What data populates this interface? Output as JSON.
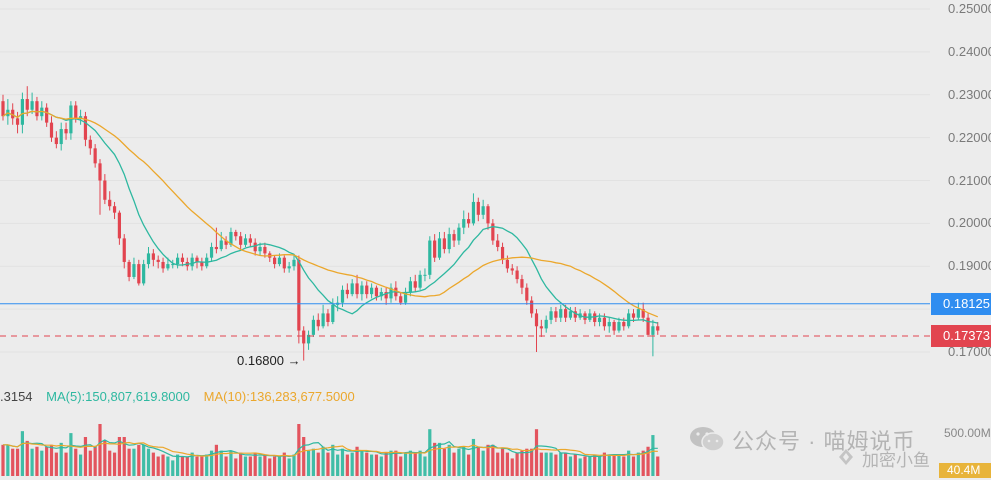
{
  "chart_data": {
    "type": "candlestick",
    "title": "",
    "xlabel": "",
    "ylabel": "",
    "ylim": [
      0.168,
      0.252
    ],
    "y_ticks": [
      "0.25000",
      "0.24000",
      "0.23000",
      "0.22000",
      "0.21000",
      "0.20000",
      "0.19000",
      "0.18000",
      "0.17000"
    ],
    "grid": true,
    "candles": [
      [
        0.2285,
        0.225,
        0.23,
        0.224
      ],
      [
        0.225,
        0.2265,
        0.229,
        0.223
      ],
      [
        0.2265,
        0.2245,
        0.228,
        0.223
      ],
      [
        0.2245,
        0.223,
        0.226,
        0.221
      ],
      [
        0.223,
        0.229,
        0.2305,
        0.221
      ],
      [
        0.229,
        0.2265,
        0.232,
        0.225
      ],
      [
        0.2265,
        0.2285,
        0.2305,
        0.2255
      ],
      [
        0.2285,
        0.225,
        0.2295,
        0.224
      ],
      [
        0.225,
        0.227,
        0.2285,
        0.224
      ],
      [
        0.227,
        0.2235,
        0.228,
        0.2225
      ],
      [
        0.2235,
        0.22,
        0.225,
        0.219
      ],
      [
        0.22,
        0.2185,
        0.2215,
        0.2175
      ],
      [
        0.2185,
        0.222,
        0.2235,
        0.217
      ],
      [
        0.222,
        0.221,
        0.2235,
        0.2195
      ],
      [
        0.221,
        0.2275,
        0.2285,
        0.2195
      ],
      [
        0.2275,
        0.2245,
        0.2285,
        0.2235
      ],
      [
        0.2245,
        0.225,
        0.2265,
        0.223
      ],
      [
        0.225,
        0.2195,
        0.226,
        0.218
      ],
      [
        0.2195,
        0.2175,
        0.2205,
        0.216
      ],
      [
        0.2175,
        0.214,
        0.2185,
        0.213
      ],
      [
        0.214,
        0.21,
        0.215,
        0.202
      ],
      [
        0.21,
        0.2055,
        0.2115,
        0.2045
      ],
      [
        0.2055,
        0.204,
        0.2075,
        0.203
      ],
      [
        0.204,
        0.2025,
        0.205,
        0.201
      ],
      [
        0.2025,
        0.1965,
        0.203,
        0.195
      ],
      [
        0.1965,
        0.191,
        0.1975,
        0.1895
      ],
      [
        0.191,
        0.1875,
        0.1915,
        0.1865
      ],
      [
        0.1875,
        0.1905,
        0.192,
        0.187
      ],
      [
        0.1905,
        0.186,
        0.1915,
        0.1855
      ],
      [
        0.186,
        0.1905,
        0.1915,
        0.1855
      ],
      [
        0.1905,
        0.193,
        0.1945,
        0.1895
      ],
      [
        0.193,
        0.1915,
        0.194,
        0.19
      ],
      [
        0.1915,
        0.191,
        0.1925,
        0.1895
      ],
      [
        0.191,
        0.1895,
        0.192,
        0.1885
      ],
      [
        0.1895,
        0.1905,
        0.192,
        0.189
      ],
      [
        0.1905,
        0.1905,
        0.1915,
        0.1895
      ],
      [
        0.1905,
        0.192,
        0.193,
        0.1895
      ],
      [
        0.192,
        0.191,
        0.193,
        0.19
      ],
      [
        0.191,
        0.19,
        0.192,
        0.189
      ],
      [
        0.19,
        0.192,
        0.193,
        0.189
      ],
      [
        0.192,
        0.191,
        0.1925,
        0.1895
      ],
      [
        0.191,
        0.19,
        0.192,
        0.189
      ],
      [
        0.19,
        0.192,
        0.193,
        0.1895
      ],
      [
        0.192,
        0.1945,
        0.1955,
        0.191
      ],
      [
        0.1945,
        0.194,
        0.199,
        0.193
      ],
      [
        0.194,
        0.196,
        0.198,
        0.1935
      ],
      [
        0.196,
        0.195,
        0.197,
        0.194
      ],
      [
        0.195,
        0.198,
        0.199,
        0.1945
      ],
      [
        0.198,
        0.197,
        0.1985,
        0.196
      ],
      [
        0.197,
        0.195,
        0.198,
        0.194
      ],
      [
        0.195,
        0.1965,
        0.1975,
        0.1945
      ],
      [
        0.1965,
        0.1955,
        0.1975,
        0.1945
      ],
      [
        0.1955,
        0.1935,
        0.1965,
        0.1925
      ],
      [
        0.1935,
        0.1945,
        0.1955,
        0.1925
      ],
      [
        0.1945,
        0.193,
        0.1955,
        0.192
      ],
      [
        0.193,
        0.192,
        0.1935,
        0.191
      ],
      [
        0.192,
        0.1905,
        0.1925,
        0.1895
      ],
      [
        0.1905,
        0.192,
        0.193,
        0.19
      ],
      [
        0.192,
        0.1895,
        0.1925,
        0.1885
      ],
      [
        0.1895,
        0.19,
        0.191,
        0.1885
      ],
      [
        0.19,
        0.1915,
        0.1925,
        0.189
      ],
      [
        0.1915,
        0.175,
        0.1925,
        0.172
      ],
      [
        0.175,
        0.172,
        0.176,
        0.168
      ],
      [
        0.172,
        0.174,
        0.175,
        0.1705
      ],
      [
        0.174,
        0.1775,
        0.1785,
        0.1735
      ],
      [
        0.1775,
        0.176,
        0.179,
        0.175
      ],
      [
        0.176,
        0.179,
        0.181,
        0.1755
      ],
      [
        0.179,
        0.177,
        0.18,
        0.176
      ],
      [
        0.177,
        0.181,
        0.1825,
        0.1765
      ],
      [
        0.181,
        0.1815,
        0.183,
        0.1795
      ],
      [
        0.1815,
        0.1845,
        0.1855,
        0.1805
      ],
      [
        0.1845,
        0.1835,
        0.186,
        0.1825
      ],
      [
        0.1835,
        0.186,
        0.187,
        0.183
      ],
      [
        0.186,
        0.1835,
        0.188,
        0.1825
      ],
      [
        0.1835,
        0.1855,
        0.1865,
        0.182
      ],
      [
        0.1855,
        0.1835,
        0.1865,
        0.1825
      ],
      [
        0.1835,
        0.185,
        0.186,
        0.1825
      ],
      [
        0.185,
        0.183,
        0.1855,
        0.182
      ],
      [
        0.183,
        0.184,
        0.185,
        0.182
      ],
      [
        0.184,
        0.1825,
        0.185,
        0.181
      ],
      [
        0.1825,
        0.185,
        0.186,
        0.1815
      ],
      [
        0.185,
        0.183,
        0.1865,
        0.182
      ],
      [
        0.183,
        0.1815,
        0.184,
        0.181
      ],
      [
        0.1815,
        0.184,
        0.185,
        0.181
      ],
      [
        0.184,
        0.1865,
        0.1875,
        0.183
      ],
      [
        0.1865,
        0.185,
        0.188,
        0.184
      ],
      [
        0.185,
        0.188,
        0.189,
        0.1845
      ],
      [
        0.188,
        0.188,
        0.1895,
        0.1865
      ],
      [
        0.188,
        0.196,
        0.197,
        0.187
      ],
      [
        0.196,
        0.192,
        0.1975,
        0.191
      ],
      [
        0.192,
        0.1965,
        0.198,
        0.1915
      ],
      [
        0.1965,
        0.194,
        0.198,
        0.193
      ],
      [
        0.194,
        0.1975,
        0.199,
        0.193
      ],
      [
        0.1975,
        0.196,
        0.1985,
        0.1945
      ],
      [
        0.196,
        0.199,
        0.2,
        0.195
      ],
      [
        0.199,
        0.201,
        0.203,
        0.1975
      ],
      [
        0.201,
        0.2,
        0.2025,
        0.199
      ],
      [
        0.2,
        0.205,
        0.207,
        0.1995
      ],
      [
        0.205,
        0.202,
        0.206,
        0.2005
      ],
      [
        0.202,
        0.204,
        0.2055,
        0.201
      ],
      [
        0.204,
        0.2,
        0.2045,
        0.1985
      ],
      [
        0.2,
        0.196,
        0.201,
        0.195
      ],
      [
        0.196,
        0.1945,
        0.1975,
        0.1935
      ],
      [
        0.1945,
        0.1915,
        0.1955,
        0.1905
      ],
      [
        0.1915,
        0.1895,
        0.1925,
        0.1885
      ],
      [
        0.1895,
        0.189,
        0.1905,
        0.188
      ],
      [
        0.189,
        0.187,
        0.19,
        0.186
      ],
      [
        0.187,
        0.185,
        0.188,
        0.1835
      ],
      [
        0.185,
        0.182,
        0.186,
        0.181
      ],
      [
        0.182,
        0.179,
        0.183,
        0.178
      ],
      [
        0.179,
        0.176,
        0.18,
        0.17
      ],
      [
        0.176,
        0.1755,
        0.1775,
        0.1735
      ],
      [
        0.1755,
        0.1775,
        0.1785,
        0.1745
      ],
      [
        0.1775,
        0.1795,
        0.1805,
        0.1765
      ],
      [
        0.1795,
        0.178,
        0.1805,
        0.177
      ],
      [
        0.178,
        0.18,
        0.181,
        0.177
      ],
      [
        0.18,
        0.178,
        0.181,
        0.177
      ],
      [
        0.178,
        0.1795,
        0.1805,
        0.1775
      ],
      [
        0.1795,
        0.178,
        0.1805,
        0.177
      ],
      [
        0.178,
        0.179,
        0.18,
        0.1775
      ],
      [
        0.179,
        0.1775,
        0.1795,
        0.1765
      ],
      [
        0.1775,
        0.179,
        0.18,
        0.177
      ],
      [
        0.179,
        0.177,
        0.1795,
        0.176
      ],
      [
        0.177,
        0.178,
        0.179,
        0.176
      ],
      [
        0.178,
        0.176,
        0.179,
        0.175
      ],
      [
        0.176,
        0.177,
        0.178,
        0.1745
      ],
      [
        0.177,
        0.175,
        0.1775,
        0.174
      ],
      [
        0.175,
        0.177,
        0.178,
        0.1745
      ],
      [
        0.177,
        0.176,
        0.178,
        0.175
      ],
      [
        0.176,
        0.179,
        0.18,
        0.1755
      ],
      [
        0.179,
        0.178,
        0.18,
        0.177
      ],
      [
        0.178,
        0.18,
        0.1815,
        0.1775
      ],
      [
        0.18,
        0.178,
        0.1815,
        0.177
      ],
      [
        0.178,
        0.174,
        0.179,
        0.1735
      ],
      [
        0.174,
        0.176,
        0.1775,
        0.169
      ],
      [
        0.176,
        0.175,
        0.177,
        0.174
      ]
    ],
    "ma_lines": [
      {
        "name": "MA(5)",
        "color": "#2eb8a0"
      },
      {
        "name": "MA(10)",
        "color": "#eba72c"
      }
    ],
    "price_lines": [
      {
        "label": "0.18125",
        "value": 0.18125,
        "color": "#2f8df0",
        "style": "solid"
      },
      {
        "label": "0.17373",
        "value": 0.17373,
        "color": "#e2444f",
        "style": "dashed"
      }
    ],
    "low_annotation": {
      "label": "0.16800",
      "value": 0.168
    },
    "volume": {
      "legend": [
        {
          "text": ".3154",
          "color": "#444444"
        },
        {
          "text": "MA(5):150,807,619.8000",
          "color": "#2eb8a0"
        },
        {
          "text": "MA(10):136,283,677.5000",
          "color": "#eba72c"
        }
      ],
      "axis_label": "500.00M",
      "current_label": "40.4M",
      "ylim": [
        0,
        500
      ]
    }
  },
  "watermark": {
    "line1": "公众号 · 喵姆说币",
    "line2": "加密小鱼"
  },
  "colors": {
    "up": "#2eb8a0",
    "down": "#e2444f",
    "bg": "#ececec",
    "grid": "#e2e2e2"
  }
}
